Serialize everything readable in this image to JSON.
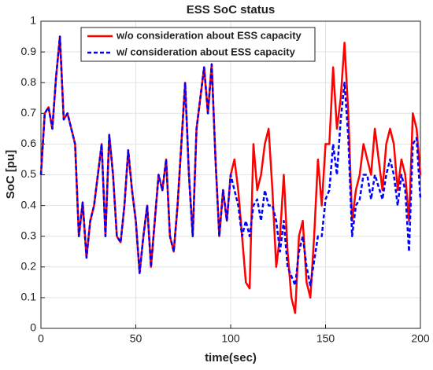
{
  "chart_data": {
    "type": "line",
    "title": "ESS SoC status",
    "xlabel": "time(sec)",
    "ylabel": "SoC [pu]",
    "x": [
      0,
      2,
      4,
      6,
      8,
      10,
      12,
      14,
      16,
      18,
      20,
      22,
      24,
      26,
      28,
      30,
      32,
      34,
      36,
      38,
      40,
      42,
      44,
      46,
      48,
      50,
      52,
      54,
      56,
      58,
      60,
      62,
      64,
      66,
      68,
      70,
      72,
      74,
      76,
      78,
      80,
      82,
      84,
      86,
      88,
      90,
      92,
      94,
      96,
      98,
      100,
      102,
      104,
      106,
      108,
      110,
      112,
      114,
      116,
      118,
      120,
      122,
      124,
      126,
      128,
      130,
      132,
      134,
      136,
      138,
      140,
      142,
      144,
      146,
      148,
      150,
      152,
      154,
      156,
      158,
      160,
      162,
      164,
      166,
      168,
      170,
      172,
      174,
      176,
      178,
      180,
      182,
      184,
      186,
      188,
      190,
      192,
      194,
      196,
      198,
      200
    ],
    "series": [
      {
        "name": "w/o consideration about ESS capacity",
        "color": "#ff0000",
        "dash": false,
        "values": [
          0.5,
          0.7,
          0.72,
          0.65,
          0.82,
          0.95,
          0.68,
          0.7,
          0.65,
          0.6,
          0.3,
          0.41,
          0.23,
          0.35,
          0.4,
          0.5,
          0.6,
          0.3,
          0.63,
          0.5,
          0.3,
          0.28,
          0.4,
          0.58,
          0.45,
          0.35,
          0.18,
          0.3,
          0.4,
          0.2,
          0.35,
          0.5,
          0.45,
          0.55,
          0.3,
          0.25,
          0.4,
          0.6,
          0.8,
          0.5,
          0.3,
          0.65,
          0.75,
          0.85,
          0.7,
          0.86,
          0.55,
          0.3,
          0.45,
          0.35,
          0.5,
          0.55,
          0.45,
          0.3,
          0.15,
          0.13,
          0.6,
          0.45,
          0.5,
          0.6,
          0.65,
          0.45,
          0.2,
          0.3,
          0.5,
          0.25,
          0.1,
          0.05,
          0.3,
          0.35,
          0.15,
          0.1,
          0.3,
          0.55,
          0.4,
          0.6,
          0.6,
          0.85,
          0.65,
          0.75,
          0.93,
          0.7,
          0.35,
          0.45,
          0.5,
          0.6,
          0.55,
          0.5,
          0.65,
          0.55,
          0.45,
          0.6,
          0.65,
          0.6,
          0.45,
          0.55,
          0.5,
          0.35,
          0.7,
          0.65,
          0.5
        ]
      },
      {
        "name": "w/ consideration about ESS capacity",
        "color": "#0000ff",
        "dash": true,
        "values": [
          0.5,
          0.7,
          0.72,
          0.65,
          0.82,
          0.95,
          0.68,
          0.7,
          0.65,
          0.6,
          0.3,
          0.41,
          0.23,
          0.35,
          0.4,
          0.5,
          0.6,
          0.3,
          0.63,
          0.5,
          0.3,
          0.28,
          0.4,
          0.58,
          0.45,
          0.35,
          0.18,
          0.3,
          0.4,
          0.2,
          0.35,
          0.5,
          0.45,
          0.55,
          0.3,
          0.25,
          0.4,
          0.6,
          0.8,
          0.5,
          0.3,
          0.65,
          0.75,
          0.85,
          0.7,
          0.86,
          0.55,
          0.3,
          0.45,
          0.35,
          0.5,
          0.45,
          0.4,
          0.3,
          0.35,
          0.3,
          0.4,
          0.42,
          0.35,
          0.45,
          0.4,
          0.4,
          0.35,
          0.25,
          0.35,
          0.2,
          0.17,
          0.14,
          0.25,
          0.3,
          0.2,
          0.14,
          0.22,
          0.3,
          0.3,
          0.42,
          0.45,
          0.6,
          0.5,
          0.68,
          0.8,
          0.62,
          0.3,
          0.4,
          0.42,
          0.5,
          0.5,
          0.42,
          0.5,
          0.46,
          0.42,
          0.5,
          0.55,
          0.5,
          0.4,
          0.5,
          0.45,
          0.25,
          0.6,
          0.62,
          0.42
        ]
      }
    ],
    "xlim": [
      0,
      200
    ],
    "xticks": [
      0,
      50,
      100,
      150,
      200
    ],
    "ylim": [
      0,
      1
    ],
    "yticks": [
      0,
      0.1,
      0.2,
      0.3,
      0.4,
      0.5,
      0.6,
      0.7,
      0.8,
      0.9,
      1
    ],
    "grid": true,
    "legend": "upper left"
  }
}
